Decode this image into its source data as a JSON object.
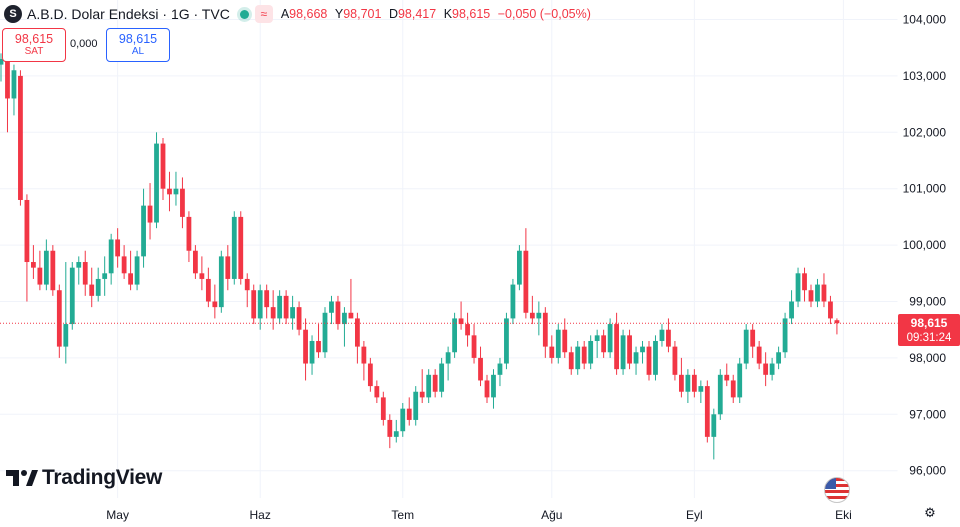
{
  "header": {
    "symbol_badge": "S",
    "title": "A.B.D. Dolar Endeksi · 1G · TVC",
    "ohlc": [
      {
        "k": "A",
        "v": "98,668"
      },
      {
        "k": "Y",
        "v": "98,701"
      },
      {
        "k": "D",
        "v": "98,417"
      },
      {
        "k": "K",
        "v": "98,615"
      }
    ],
    "change": "−0,050 (−0,05%)"
  },
  "trade": {
    "sell_price": "98,615",
    "sell_label": "SAT",
    "spread": "0,000",
    "buy_price": "98,615",
    "buy_label": "AL"
  },
  "brand": "TradingView",
  "icons": [
    "symbol-badge",
    "status-dot-icon",
    "wave-icon",
    "tradingview-logo-icon",
    "us-flag-icon",
    "gear-icon"
  ],
  "colors": {
    "up": "#22ab94",
    "down": "#f23645",
    "accent": "#2962ff"
  },
  "price_tag": {
    "value": "98,615",
    "countdown": "09:31:24"
  },
  "chart_data": {
    "type": "candlestick",
    "ylim": [
      95.8,
      104.3
    ],
    "y_ticks": [
      {
        "v": 104,
        "label": "104,000"
      },
      {
        "v": 103,
        "label": "103,000"
      },
      {
        "v": 102,
        "label": "102,000"
      },
      {
        "v": 101,
        "label": "101,000"
      },
      {
        "v": 100,
        "label": "100,000"
      },
      {
        "v": 99,
        "label": "99,000"
      },
      {
        "v": 98,
        "label": "98,000"
      },
      {
        "v": 97,
        "label": "97,000"
      },
      {
        "v": 96,
        "label": "96,000"
      }
    ],
    "x_ticks": [
      {
        "index": 18,
        "label": "May"
      },
      {
        "index": 40,
        "label": "Haz"
      },
      {
        "index": 62,
        "label": "Tem"
      },
      {
        "index": 85,
        "label": "Ağu"
      },
      {
        "index": 107,
        "label": "Eyl"
      },
      {
        "index": 130,
        "label": "Eki"
      }
    ],
    "current_price": 98.615,
    "grid": true,
    "candles": [
      [
        103.2,
        103.4,
        102.9,
        103.3
      ],
      [
        103.3,
        103.5,
        102.0,
        102.6
      ],
      [
        102.6,
        103.2,
        102.3,
        103.1
      ],
      [
        103.0,
        103.1,
        100.7,
        100.8
      ],
      [
        100.8,
        100.9,
        99.0,
        99.7
      ],
      [
        99.7,
        100.0,
        99.4,
        99.6
      ],
      [
        99.6,
        99.9,
        99.2,
        99.3
      ],
      [
        99.3,
        100.1,
        99.2,
        99.9
      ],
      [
        99.9,
        100.0,
        99.1,
        99.2
      ],
      [
        99.2,
        99.3,
        98.0,
        98.2
      ],
      [
        98.2,
        99.7,
        97.9,
        98.6
      ],
      [
        98.6,
        99.7,
        98.5,
        99.6
      ],
      [
        99.6,
        99.8,
        99.3,
        99.7
      ],
      [
        99.7,
        99.9,
        99.1,
        99.3
      ],
      [
        99.3,
        99.6,
        98.9,
        99.1
      ],
      [
        99.1,
        99.6,
        99.0,
        99.4
      ],
      [
        99.4,
        99.8,
        99.1,
        99.5
      ],
      [
        99.5,
        100.2,
        99.3,
        100.1
      ],
      [
        100.1,
        100.3,
        99.6,
        99.8
      ],
      [
        99.8,
        100.0,
        99.4,
        99.5
      ],
      [
        99.5,
        99.9,
        99.2,
        99.3
      ],
      [
        99.3,
        99.9,
        99.2,
        99.8
      ],
      [
        99.8,
        101.0,
        99.6,
        100.7
      ],
      [
        100.7,
        101.1,
        100.1,
        100.4
      ],
      [
        100.4,
        102.0,
        100.3,
        101.8
      ],
      [
        101.8,
        101.9,
        100.8,
        101.0
      ],
      [
        101.0,
        101.3,
        100.6,
        100.9
      ],
      [
        100.9,
        101.3,
        100.7,
        101.0
      ],
      [
        101.0,
        101.2,
        100.3,
        100.5
      ],
      [
        100.5,
        100.6,
        99.7,
        99.9
      ],
      [
        99.9,
        100.0,
        99.4,
        99.5
      ],
      [
        99.5,
        99.8,
        99.2,
        99.4
      ],
      [
        99.4,
        99.6,
        98.9,
        99.0
      ],
      [
        99.0,
        99.3,
        98.7,
        98.9
      ],
      [
        98.9,
        99.9,
        98.8,
        99.8
      ],
      [
        99.8,
        100.0,
        99.2,
        99.4
      ],
      [
        99.4,
        100.6,
        99.3,
        100.5
      ],
      [
        100.5,
        100.6,
        99.3,
        99.4
      ],
      [
        99.4,
        99.5,
        98.9,
        99.2
      ],
      [
        99.2,
        99.3,
        98.6,
        98.7
      ],
      [
        98.7,
        99.3,
        98.5,
        99.2
      ],
      [
        99.2,
        99.3,
        98.7,
        98.9
      ],
      [
        98.9,
        99.2,
        98.5,
        98.7
      ],
      [
        98.7,
        99.2,
        98.6,
        99.1
      ],
      [
        99.1,
        99.2,
        98.6,
        98.7
      ],
      [
        98.7,
        99.1,
        98.5,
        98.9
      ],
      [
        98.9,
        99.0,
        98.4,
        98.5
      ],
      [
        98.5,
        98.7,
        97.6,
        97.9
      ],
      [
        97.9,
        98.4,
        97.7,
        98.3
      ],
      [
        98.3,
        98.6,
        98.0,
        98.1
      ],
      [
        98.1,
        98.9,
        98.0,
        98.8
      ],
      [
        98.8,
        99.1,
        98.6,
        99.0
      ],
      [
        99.0,
        99.1,
        98.5,
        98.6
      ],
      [
        98.6,
        98.9,
        98.2,
        98.8
      ],
      [
        98.8,
        99.4,
        98.7,
        98.7
      ],
      [
        98.7,
        98.8,
        97.9,
        98.2
      ],
      [
        98.2,
        98.3,
        97.6,
        97.9
      ],
      [
        97.9,
        98.0,
        97.4,
        97.5
      ],
      [
        97.5,
        97.6,
        97.2,
        97.3
      ],
      [
        97.3,
        97.4,
        96.8,
        96.9
      ],
      [
        96.9,
        97.0,
        96.4,
        96.6
      ],
      [
        96.6,
        96.9,
        96.5,
        96.7
      ],
      [
        96.7,
        97.2,
        96.6,
        97.1
      ],
      [
        97.1,
        97.3,
        96.8,
        96.9
      ],
      [
        96.9,
        97.5,
        96.8,
        97.4
      ],
      [
        97.4,
        97.8,
        97.2,
        97.3
      ],
      [
        97.3,
        97.8,
        97.2,
        97.7
      ],
      [
        97.7,
        97.8,
        97.3,
        97.4
      ],
      [
        97.4,
        98.0,
        97.3,
        97.9
      ],
      [
        97.9,
        98.2,
        97.6,
        98.1
      ],
      [
        98.1,
        98.8,
        98.0,
        98.7
      ],
      [
        98.7,
        99.0,
        98.5,
        98.6
      ],
      [
        98.6,
        98.8,
        98.2,
        98.4
      ],
      [
        98.4,
        98.6,
        97.9,
        98.0
      ],
      [
        98.0,
        98.2,
        97.5,
        97.6
      ],
      [
        97.6,
        97.7,
        97.2,
        97.3
      ],
      [
        97.3,
        97.8,
        97.1,
        97.7
      ],
      [
        97.7,
        98.0,
        97.5,
        97.9
      ],
      [
        97.9,
        98.8,
        97.8,
        98.7
      ],
      [
        98.7,
        99.4,
        98.6,
        99.3
      ],
      [
        99.3,
        100.0,
        99.2,
        99.9
      ],
      [
        99.9,
        100.3,
        98.7,
        98.8
      ],
      [
        98.8,
        99.1,
        98.6,
        98.7
      ],
      [
        98.7,
        99.0,
        98.4,
        98.8
      ],
      [
        98.8,
        98.9,
        98.0,
        98.2
      ],
      [
        98.2,
        98.4,
        97.9,
        98.0
      ],
      [
        98.0,
        98.6,
        97.9,
        98.5
      ],
      [
        98.5,
        98.7,
        98.0,
        98.1
      ],
      [
        98.1,
        98.2,
        97.7,
        97.8
      ],
      [
        97.8,
        98.3,
        97.7,
        98.2
      ],
      [
        98.2,
        98.3,
        97.8,
        97.9
      ],
      [
        97.9,
        98.4,
        97.8,
        98.3
      ],
      [
        98.3,
        98.5,
        98.0,
        98.4
      ],
      [
        98.4,
        98.5,
        98.0,
        98.1
      ],
      [
        98.1,
        98.7,
        98.0,
        98.6
      ],
      [
        98.6,
        98.8,
        97.7,
        97.8
      ],
      [
        97.8,
        98.5,
        97.7,
        98.4
      ],
      [
        98.4,
        98.5,
        97.8,
        97.9
      ],
      [
        97.9,
        98.2,
        97.7,
        98.1
      ],
      [
        98.1,
        98.3,
        97.9,
        98.2
      ],
      [
        98.2,
        98.3,
        97.6,
        97.7
      ],
      [
        97.7,
        98.4,
        97.6,
        98.3
      ],
      [
        98.3,
        98.6,
        98.2,
        98.5
      ],
      [
        98.5,
        98.7,
        98.1,
        98.2
      ],
      [
        98.2,
        98.3,
        97.6,
        97.7
      ],
      [
        97.7,
        98.0,
        97.3,
        97.4
      ],
      [
        97.4,
        97.8,
        97.2,
        97.7
      ],
      [
        97.7,
        97.8,
        97.3,
        97.4
      ],
      [
        97.4,
        97.6,
        97.2,
        97.5
      ],
      [
        97.5,
        97.6,
        96.5,
        96.6
      ],
      [
        96.6,
        97.1,
        96.2,
        97.0
      ],
      [
        97.0,
        97.8,
        96.9,
        97.7
      ],
      [
        97.7,
        97.9,
        97.5,
        97.6
      ],
      [
        97.6,
        97.7,
        97.2,
        97.3
      ],
      [
        97.3,
        98.0,
        97.2,
        97.9
      ],
      [
        97.9,
        98.6,
        97.8,
        98.5
      ],
      [
        98.5,
        98.6,
        98.0,
        98.2
      ],
      [
        98.2,
        98.3,
        97.8,
        97.9
      ],
      [
        97.9,
        98.1,
        97.5,
        97.7
      ],
      [
        97.7,
        98.0,
        97.6,
        97.9
      ],
      [
        97.9,
        98.2,
        97.8,
        98.1
      ],
      [
        98.1,
        98.8,
        98.0,
        98.7
      ],
      [
        98.7,
        99.2,
        98.6,
        99.0
      ],
      [
        99.0,
        99.6,
        98.9,
        99.5
      ],
      [
        99.5,
        99.6,
        99.0,
        99.2
      ],
      [
        99.2,
        99.3,
        98.9,
        99.0
      ],
      [
        99.0,
        99.4,
        98.9,
        99.3
      ],
      [
        99.3,
        99.5,
        98.9,
        99.0
      ],
      [
        99.0,
        99.1,
        98.6,
        98.7
      ],
      [
        98.668,
        98.701,
        98.417,
        98.615
      ]
    ]
  }
}
